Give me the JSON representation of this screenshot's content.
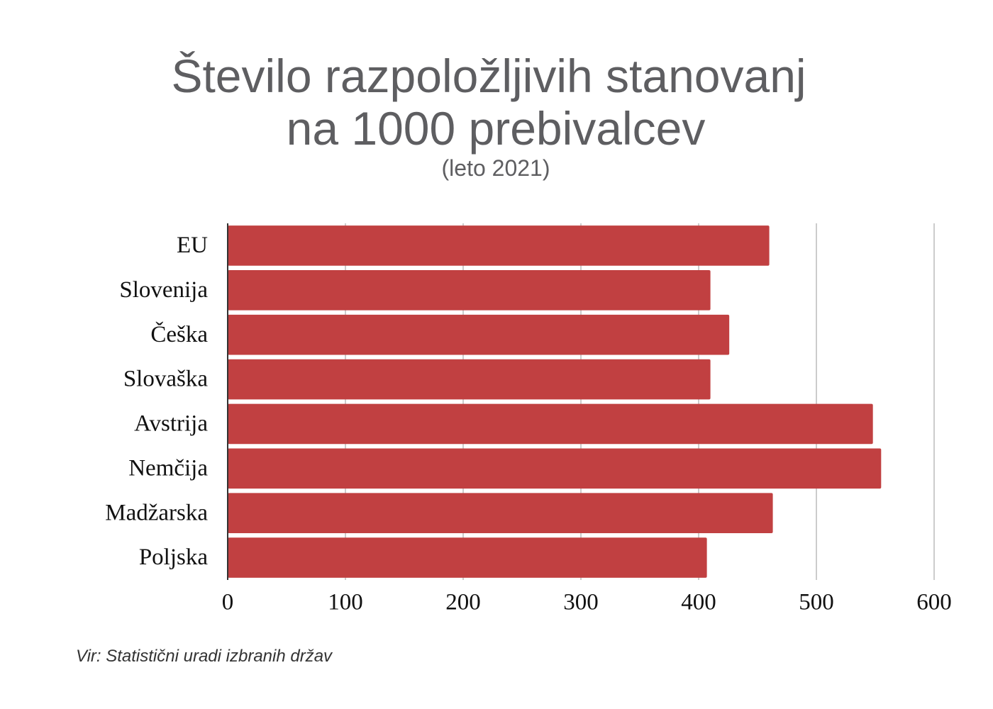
{
  "chart_data": {
    "type": "bar",
    "orientation": "horizontal",
    "title": [
      "Število razpoložljivih stanovanj",
      "na 1000 prebivalcev"
    ],
    "subtitle": "(leto 2021)",
    "source": "Vir: Statistični uradi izbranih držav",
    "categories": [
      "EU",
      "Slovenija",
      "Češka",
      "Slovaška",
      "Avstrija",
      "Nemčija",
      "Madžarska",
      "Poljska"
    ],
    "values": [
      460,
      410,
      426,
      410,
      548,
      555,
      463,
      407
    ],
    "color": "#c14041",
    "xlim": [
      0,
      600
    ],
    "xticks": [
      0,
      100,
      200,
      300,
      400,
      500,
      600
    ],
    "grid": true
  }
}
